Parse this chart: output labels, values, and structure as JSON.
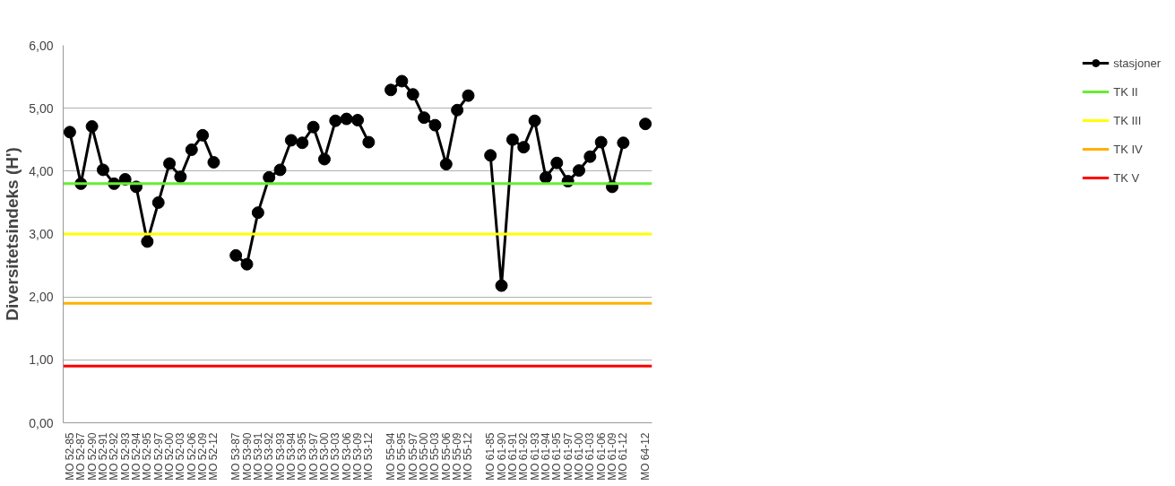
{
  "chart_data": {
    "type": "line",
    "ylabel": "Diversitetsindeks (H')",
    "categories": [
      "MO 52-85",
      "MO 52-87",
      "MO 52-90",
      "MO 52-91",
      "MO 52-92",
      "MO 52-93",
      "MO 52-94",
      "MO 52-95",
      "MO 52-97",
      "MO 52-00",
      "MO 52-03",
      "MO 52-06",
      "MO 52-09",
      "MO 52-12",
      null,
      "MO 53-87",
      "MO 53-90",
      "MO 53-91",
      "MO 53-92",
      "MO 53-93",
      "MO 53-94",
      "MO 53-95",
      "MO 53-97",
      "MO 53-00",
      "MO 53-03",
      "MO 53-06",
      "MO 53-09",
      "MO 53-12",
      null,
      "MO 55-94",
      "MO 55-95",
      "MO 55-97",
      "MO 55-00",
      "MO 55-03",
      "MO 55-06",
      "MO 55-09",
      "MO 55-12",
      null,
      "MO 61-85",
      "MO 61-90",
      "MO 61-91",
      "MO 61-92",
      "MO 61-93",
      "MO 61-94",
      "MO 61-95",
      "MO 61-97",
      "MO 61-00",
      "MO 61-03",
      "MO 61-06",
      "MO 61-09",
      "MO 61-12",
      null,
      "MO 64-12"
    ],
    "series": [
      {
        "name": "stasjoner",
        "color": "#000000",
        "values": [
          4.62,
          3.8,
          4.71,
          4.02,
          3.8,
          3.87,
          3.75,
          2.88,
          3.5,
          4.12,
          3.91,
          4.34,
          4.57,
          4.14,
          null,
          2.66,
          2.52,
          3.34,
          3.9,
          4.02,
          4.49,
          4.45,
          4.7,
          4.19,
          4.8,
          4.83,
          4.81,
          4.46,
          null,
          5.29,
          5.43,
          5.22,
          4.85,
          4.73,
          4.11,
          4.97,
          5.2,
          null,
          4.25,
          2.18,
          4.5,
          4.38,
          4.8,
          3.9,
          4.13,
          3.84,
          4.01,
          4.23,
          4.46,
          3.75,
          4.45,
          null,
          4.75
        ]
      }
    ],
    "ref_lines": [
      {
        "axis": "y",
        "value": 3.8,
        "label": "TK II",
        "color": "#66ee33"
      },
      {
        "axis": "y",
        "value": 3.0,
        "label": "TK III",
        "color": "#ffff00"
      },
      {
        "axis": "y",
        "value": 1.9,
        "label": "TK IV",
        "color": "#ffb000"
      },
      {
        "axis": "y",
        "value": 0.9,
        "label": "TK V",
        "color": "#ff0000"
      }
    ],
    "ylim": [
      0,
      6
    ],
    "yticks": [
      {
        "value": 0,
        "label": "0,00"
      },
      {
        "value": 1,
        "label": "1,00"
      },
      {
        "value": 2,
        "label": "2,00"
      },
      {
        "value": 3,
        "label": "3,00"
      },
      {
        "value": 4,
        "label": "4,00"
      },
      {
        "value": 5,
        "label": "5,00"
      },
      {
        "value": 6,
        "label": "6,00"
      }
    ],
    "grid": "y",
    "legend": "right",
    "marker": "circle",
    "line_style": "solid"
  }
}
